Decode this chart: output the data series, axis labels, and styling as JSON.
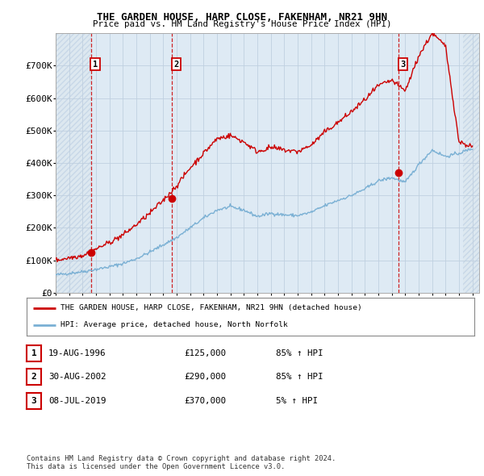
{
  "title": "THE GARDEN HOUSE, HARP CLOSE, FAKENHAM, NR21 9HN",
  "subtitle": "Price paid vs. HM Land Registry's House Price Index (HPI)",
  "xlim_start": 1994.0,
  "xlim_end": 2025.5,
  "ylim_min": 0,
  "ylim_max": 800000,
  "yticks": [
    0,
    100000,
    200000,
    300000,
    400000,
    500000,
    600000,
    700000
  ],
  "ytick_labels": [
    "£0",
    "£100K",
    "£200K",
    "£300K",
    "£400K",
    "£500K",
    "£600K",
    "£700K"
  ],
  "xticks": [
    1994,
    1995,
    1996,
    1997,
    1998,
    1999,
    2000,
    2001,
    2002,
    2003,
    2004,
    2005,
    2006,
    2007,
    2008,
    2009,
    2010,
    2011,
    2012,
    2013,
    2014,
    2015,
    2016,
    2017,
    2018,
    2019,
    2020,
    2021,
    2022,
    2023,
    2024,
    2025
  ],
  "sale_dates": [
    1996.635,
    2002.66,
    2019.52
  ],
  "sale_prices": [
    125000,
    290000,
    370000
  ],
  "sale_labels": [
    "1",
    "2",
    "3"
  ],
  "legend_line1": "THE GARDEN HOUSE, HARP CLOSE, FAKENHAM, NR21 9HN (detached house)",
  "legend_line2": "HPI: Average price, detached house, North Norfolk",
  "table_rows": [
    {
      "num": "1",
      "date": "19-AUG-1996",
      "price": "£125,000",
      "pct": "85% ↑ HPI"
    },
    {
      "num": "2",
      "date": "30-AUG-2002",
      "price": "£290,000",
      "pct": "85% ↑ HPI"
    },
    {
      "num": "3",
      "date": "08-JUL-2019",
      "price": "£370,000",
      "pct": "5% ↑ HPI"
    }
  ],
  "footnote": "Contains HM Land Registry data © Crown copyright and database right 2024.\nThis data is licensed under the Open Government Licence v3.0.",
  "hatch_color": "#c8d8e8",
  "hatch_fill": "#dde8f0",
  "owned_fill": "#deeaf4",
  "grid_color": "#c0d0e0",
  "hpi_color": "#7ab0d4",
  "price_color": "#cc0000",
  "bg_color": "#ffffff",
  "hpi_base": [
    55000,
    60000,
    65000,
    72000,
    80000,
    90000,
    105000,
    125000,
    148000,
    170000,
    200000,
    230000,
    255000,
    265000,
    255000,
    235000,
    245000,
    240000,
    238000,
    248000,
    268000,
    285000,
    300000,
    320000,
    345000,
    355000,
    340000,
    395000,
    440000,
    420000,
    430000,
    445000
  ],
  "price_base": [
    100000,
    108000,
    115000,
    135000,
    155000,
    178000,
    210000,
    245000,
    285000,
    330000,
    385000,
    430000,
    475000,
    485000,
    465000,
    435000,
    448000,
    440000,
    435000,
    455000,
    495000,
    525000,
    558000,
    595000,
    638000,
    655000,
    622000,
    730000,
    800000,
    760000,
    465000,
    450000
  ],
  "hpi_years": [
    1994,
    1995,
    1996,
    1997,
    1998,
    1999,
    2000,
    2001,
    2002,
    2003,
    2004,
    2005,
    2006,
    2007,
    2008,
    2009,
    2010,
    2011,
    2012,
    2013,
    2014,
    2015,
    2016,
    2017,
    2018,
    2019,
    2020,
    2021,
    2022,
    2023,
    2024,
    2025
  ]
}
